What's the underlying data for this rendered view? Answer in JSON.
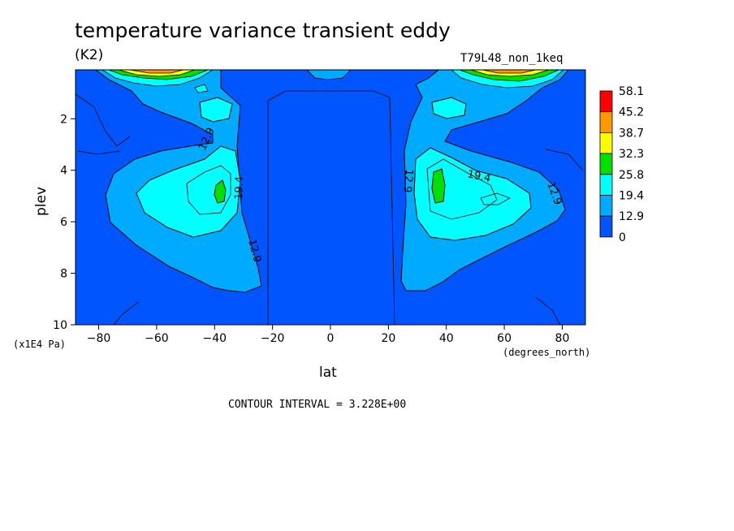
{
  "chart_data": {
    "type": "heatmap",
    "title": "temperature variance transient eddy",
    "units": "(K2)",
    "run_label": "T79L48_non_1keq",
    "xlabel": "lat",
    "ylabel": "plev",
    "x_unit_label": "(degrees_north)",
    "y_unit_label": "(x1E4 Pa)",
    "xlim": [
      -88,
      88
    ],
    "ylim": [
      0.1,
      10
    ],
    "y_inverted": true,
    "x_ticks": [
      "-80",
      "-60",
      "-40",
      "-20",
      "0",
      "20",
      "40",
      "60",
      "80"
    ],
    "x_tick_values": [
      -80,
      -60,
      -40,
      -20,
      0,
      20,
      40,
      60,
      80
    ],
    "y_ticks": [
      "2",
      "4",
      "6",
      "8",
      "10"
    ],
    "y_tick_values": [
      2,
      4,
      6,
      8,
      10
    ],
    "colorbar": {
      "levels": [
        "58.1",
        "45.2",
        "38.7",
        "32.3",
        "25.8",
        "19.4",
        "12.9",
        "0"
      ],
      "colors": [
        "#ff0000",
        "#ff9900",
        "#ffff00",
        "#00e000",
        "#00ffff",
        "#00aaff",
        "#0055ff"
      ]
    },
    "contour_labels": [
      "12.9",
      "19.4",
      "12.9",
      "12.9",
      "19.4",
      "12.9"
    ],
    "contour_interval_text": "CONTOUR INTERVAL = 3.228E+00"
  }
}
